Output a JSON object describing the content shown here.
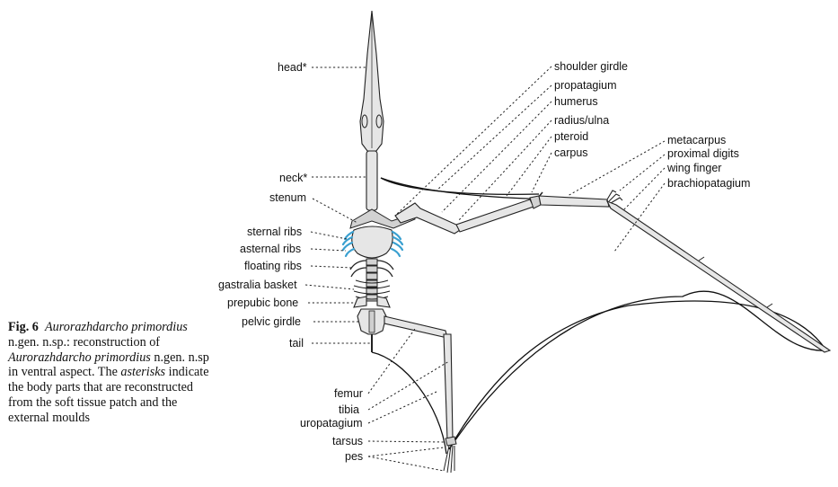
{
  "caption": {
    "fig_label": "Fig. 6",
    "species_italic_1": "Aurorazhdarcho primordius",
    "text_1": " n.gen. n.sp.: reconstruction of ",
    "species_italic_2": "Aurorazhdarcho primordius",
    "text_2": " n.gen. n.sp in ventral aspect. The ",
    "asterisks_italic": "asterisks",
    "text_3": " indicate the body parts that are reconstructed from the soft tissue patch and the external moulds"
  },
  "labels": {
    "head": "head*",
    "neck": "neck*",
    "stenum": "stenum",
    "sternal_ribs": "sternal ribs",
    "asternal_ribs": "asternal ribs",
    "floating_ribs": "floating ribs",
    "gastralia_basket": "gastralia basket",
    "prepubic_bone": "prepubic bone",
    "pelvic_girdle": "pelvic girdle",
    "tail": "tail",
    "shoulder_girdle": "shoulder girdle",
    "propatagium": "propatagium",
    "humerus": "humerus",
    "radius_ulna": "radius/ulna",
    "pteroid": "pteroid",
    "carpus": "carpus",
    "metacarpus": "metacarpus",
    "proximal_digits": "proximal digits",
    "wing_finger": "wing finger",
    "brachiopatagium": "brachiopatagium",
    "femur": "femur",
    "tibia": "tibia",
    "uropatagium": "uropatagium",
    "tarsus": "tarsus",
    "pes": "pes"
  },
  "colors": {
    "ink": "#111111",
    "bone_fill": "#e6e6e6",
    "rib_highlight": "#3aa0d0"
  }
}
